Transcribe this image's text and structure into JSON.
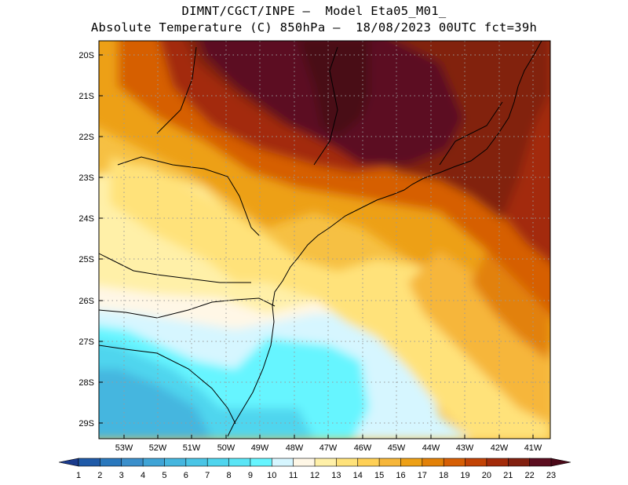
{
  "header": {
    "line1": "DIMNT/CGCT/INPE —  Model Eta05_M01_",
    "line2": "Absolute Temperature (C) 850hPa —  18/08/2023 00UTC fct=39h"
  },
  "map": {
    "variable": "Absolute Temperature",
    "units": "C",
    "level": "850hPa",
    "lon_range": [
      -53.75,
      -40.55
    ],
    "lat_range": [
      -29.4,
      -19.8
    ],
    "lat_labels": [
      "20S",
      "21S",
      "22S",
      "23S",
      "24S",
      "25S",
      "26S",
      "27S",
      "28S",
      "29S"
    ],
    "lon_labels": [
      "53W",
      "52W",
      "51W",
      "50W",
      "49W",
      "48W",
      "47W",
      "46W",
      "45W",
      "44W",
      "43W",
      "42W",
      "41W"
    ]
  },
  "colorbar": {
    "labels": [
      "1",
      "2",
      "3",
      "4",
      "5",
      "6",
      "7",
      "8",
      "9",
      "10",
      "11",
      "12",
      "13",
      "14",
      "15",
      "16",
      "17",
      "18",
      "19",
      "20",
      "21",
      "22",
      "23"
    ],
    "colors": [
      "#1a3a8c",
      "#1f5aa8",
      "#2a78bd",
      "#3b8fcb",
      "#3fa4d6",
      "#45b6df",
      "#4ac5e6",
      "#4fd5ee",
      "#5ae5f6",
      "#66f5ff",
      "#d6f6ff",
      "#fff7e6",
      "#fff0a8",
      "#ffe27a",
      "#ffd056",
      "#f6b63a",
      "#eda016",
      "#e28108",
      "#d65f05",
      "#c24305",
      "#a32b0a",
      "#822010",
      "#5c0e20",
      "#4a0818"
    ]
  }
}
